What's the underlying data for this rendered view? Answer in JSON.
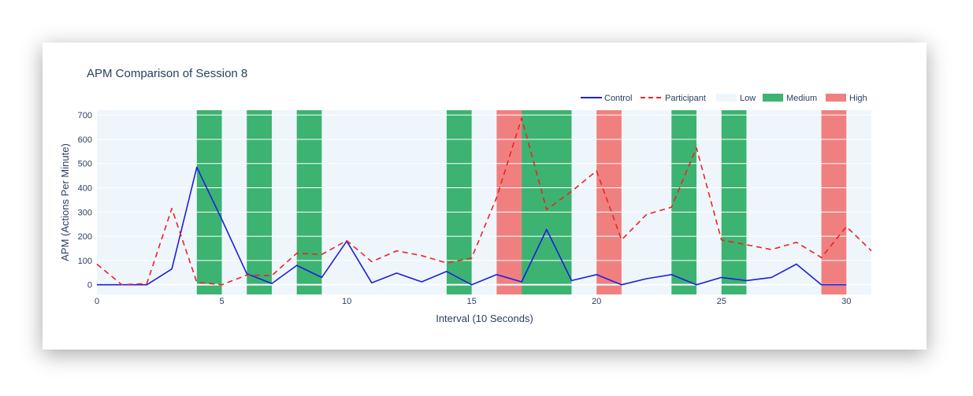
{
  "chart_data": {
    "type": "line",
    "title": "APM Comparison of Session 8",
    "xlabel": "Interval (10 Seconds)",
    "ylabel": "APM (Actions Per Minute)",
    "xlim": [
      0,
      31
    ],
    "ylim": [
      -40,
      720
    ],
    "xticks": [
      0,
      5,
      10,
      15,
      20,
      25,
      30
    ],
    "yticks": [
      0,
      100,
      200,
      300,
      400,
      500,
      600,
      700
    ],
    "grid": true,
    "legend_position": "top-right",
    "background_color": "#eef6fc",
    "legend": [
      "Control",
      "Participant",
      "Low",
      "Medium",
      "High"
    ],
    "bands": {
      "Low": {
        "color": "#eef6fc",
        "ranges": []
      },
      "Medium": {
        "color": "#3cb371",
        "ranges": [
          [
            4,
            5
          ],
          [
            6,
            7
          ],
          [
            8,
            9
          ],
          [
            14,
            15
          ],
          [
            17,
            19
          ],
          [
            23,
            24
          ],
          [
            25,
            26
          ]
        ]
      },
      "High": {
        "color": "#f08080",
        "ranges": [
          [
            16,
            17
          ],
          [
            20,
            21
          ],
          [
            29,
            30
          ]
        ]
      }
    },
    "series": [
      {
        "name": "Control",
        "color": "#1f1fdb",
        "dash": "solid",
        "x": [
          0,
          1,
          2,
          3,
          4,
          5,
          6,
          7,
          8,
          9,
          10,
          11,
          12,
          13,
          14,
          15,
          16,
          17,
          18,
          19,
          20,
          21,
          22,
          23,
          24,
          25,
          26,
          27,
          28,
          29,
          30
        ],
        "values": [
          0,
          0,
          0,
          65,
          485,
          270,
          45,
          5,
          80,
          30,
          180,
          8,
          48,
          12,
          55,
          0,
          42,
          12,
          228,
          17,
          42,
          0,
          25,
          42,
          0,
          30,
          17,
          30,
          85,
          0,
          0
        ]
      },
      {
        "name": "Participant",
        "color": "#ee2222",
        "dash": "dashed",
        "x": [
          0,
          1,
          2,
          3,
          4,
          5,
          6,
          7,
          8,
          9,
          10,
          11,
          12,
          13,
          14,
          15,
          16,
          17,
          18,
          19,
          20,
          21,
          22,
          23,
          24,
          25,
          26,
          27,
          28,
          29,
          30,
          31
        ],
        "values": [
          85,
          0,
          5,
          315,
          10,
          0,
          40,
          38,
          130,
          125,
          182,
          95,
          140,
          120,
          90,
          110,
          360,
          688,
          310,
          385,
          470,
          185,
          290,
          320,
          565,
          185,
          165,
          145,
          175,
          112,
          240,
          140
        ]
      }
    ]
  }
}
